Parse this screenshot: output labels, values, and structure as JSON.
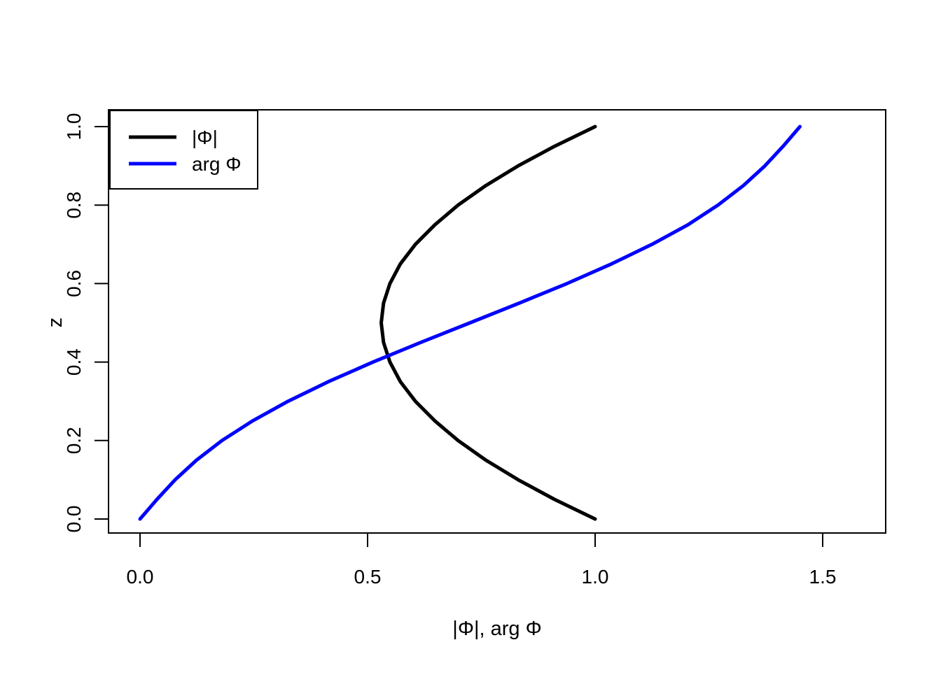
{
  "figure": {
    "background": "#ffffff",
    "frame_color": "#000000"
  },
  "chart_data": {
    "type": "line",
    "description": "Two curves plotted with the dependent variable on the horizontal axis and height z on the vertical axis (R base plot style)",
    "title": "",
    "xlabel": "|Φ|, arg Φ",
    "ylabel": "z",
    "xlim": [
      0,
      1.6
    ],
    "ylim": [
      0,
      1
    ],
    "grid": "off",
    "x_ticks": [
      0.0,
      0.5,
      1.0,
      1.5
    ],
    "x_tick_labels": [
      "0.0",
      "0.5",
      "1.0",
      "1.5"
    ],
    "y_ticks": [
      0.0,
      0.2,
      0.4,
      0.6,
      0.8,
      1.0
    ],
    "y_tick_labels": [
      "0.0",
      "0.2",
      "0.4",
      "0.6",
      "0.8",
      "1.0"
    ],
    "legend": {
      "position": "topleft",
      "border": "on"
    },
    "series": [
      {
        "name": "|Φ|",
        "id": "phi-magnitude",
        "color": "#000000",
        "z": [
          0.0,
          0.05,
          0.1,
          0.15,
          0.2,
          0.25,
          0.3,
          0.35,
          0.4,
          0.45,
          0.5,
          0.55,
          0.6,
          0.65,
          0.7,
          0.75,
          0.8,
          0.85,
          0.9,
          0.95,
          1.0
        ],
        "x": [
          1.0,
          0.911,
          0.831,
          0.76,
          0.699,
          0.648,
          0.605,
          0.572,
          0.549,
          0.535,
          0.53,
          0.535,
          0.549,
          0.572,
          0.605,
          0.648,
          0.699,
          0.76,
          0.831,
          0.911,
          1.0
        ]
      },
      {
        "name": "arg Φ",
        "id": "phi-arg",
        "color": "#0000ff",
        "z": [
          0.0,
          0.05,
          0.1,
          0.15,
          0.2,
          0.25,
          0.3,
          0.35,
          0.4,
          0.45,
          0.5,
          0.55,
          0.6,
          0.65,
          0.7,
          0.75,
          0.8,
          0.85,
          0.9,
          0.95,
          1.0
        ],
        "x": [
          0.0,
          0.037,
          0.077,
          0.124,
          0.18,
          0.247,
          0.325,
          0.414,
          0.512,
          0.617,
          0.725,
          0.833,
          0.938,
          1.036,
          1.125,
          1.204,
          1.27,
          1.326,
          1.373,
          1.413,
          1.45
        ]
      }
    ]
  }
}
